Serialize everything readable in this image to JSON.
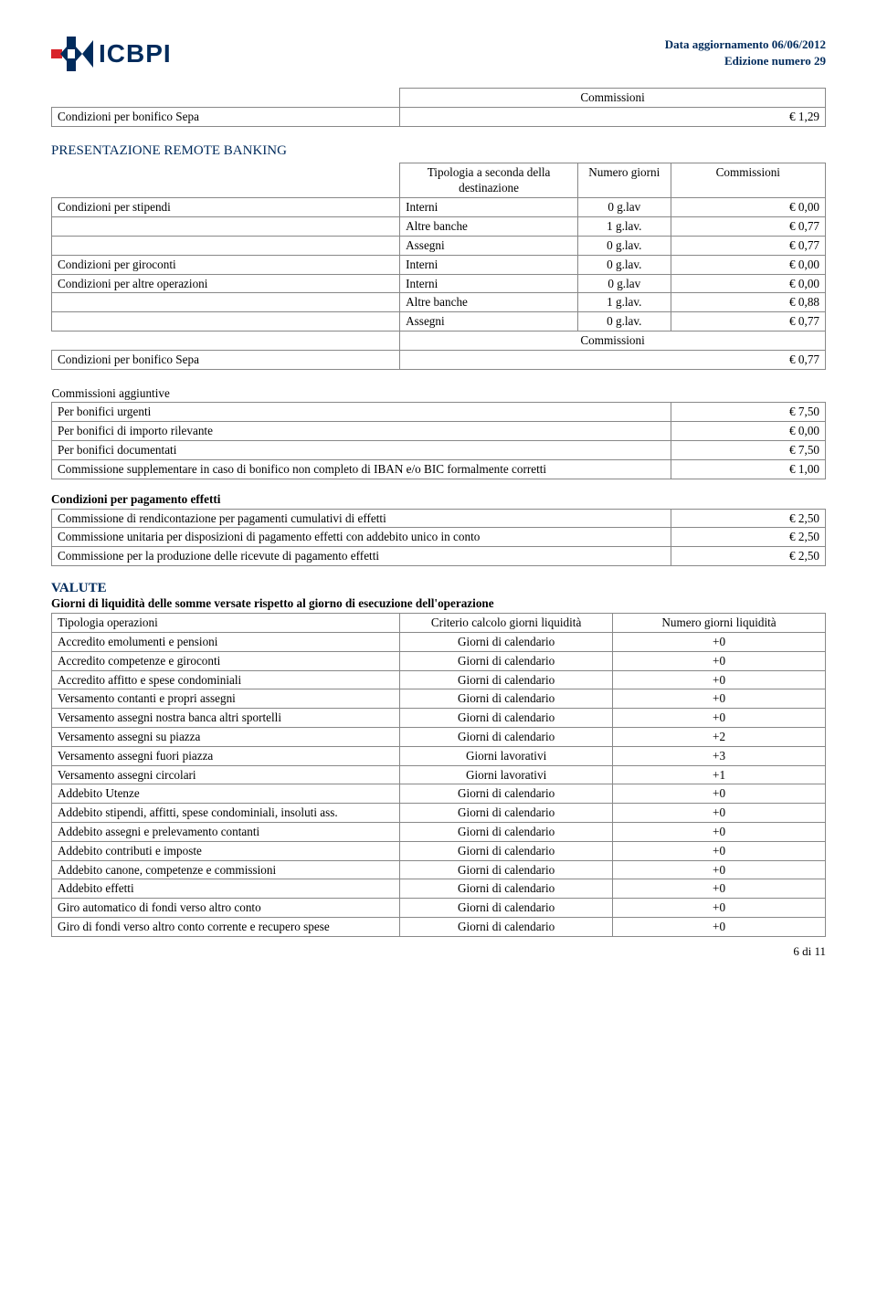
{
  "header": {
    "brand": "ICBPI",
    "date_line": "Data aggiornamento 06/06/2012",
    "edition_line": "Edizione numero 29",
    "logo_colors": {
      "blue": "#002b5c",
      "red": "#d8232a"
    }
  },
  "t_sepa1": {
    "r0c0": "Condizioni per bonifico Sepa",
    "r0c1_hdr": "Commissioni",
    "r0c2": "€ 1,29"
  },
  "section_remote": "PRESENTAZIONE REMOTE BANKING",
  "t_remote": {
    "hdr_c1": "Tipologia a seconda della destinazione",
    "hdr_c2": "Numero giorni",
    "hdr_c3": "Commissioni",
    "r1c0": "Condizioni  per stipendi",
    "r1c1": "Interni",
    "r1c2": "0 g.lav",
    "r1c3": "€ 0,00",
    "r2c1": "Altre banche",
    "r2c2": "1 g.lav.",
    "r2c3": "€ 0,77",
    "r3c1": "Assegni",
    "r3c2": "0 g.lav.",
    "r3c3": "€ 0,77",
    "r4c0": "Condizioni per giroconti",
    "r4c1": "Interni",
    "r4c2": "0 g.lav.",
    "r4c3": "€ 0,00",
    "r5c0": "Condizioni per altre operazioni",
    "r5c1": "Interni",
    "r5c2": "0 g.lav",
    "r5c3": "€ 0,00",
    "r6c1": "Altre banche",
    "r6c2": "1 g.lav.",
    "r6c3": "€ 0,88",
    "r7c1": "Assegni",
    "r7c2": "0 g.lav.",
    "r7c3": "€ 0,77",
    "r8c1_hdr": "Commissioni",
    "r9c0": "Condizioni per bonifico Sepa",
    "r9c3": "€ 0,77"
  },
  "t_agg": {
    "title": "Commissioni aggiuntive",
    "r1c0": "Per bonifici urgenti",
    "r1c1": "€ 7,50",
    "r2c0": "Per bonifici di importo rilevante",
    "r2c1": "€ 0,00",
    "r3c0": "Per bonifici documentati",
    "r3c1": "€ 7,50",
    "r4c0": "Commissione supplementare in caso di bonifico non completo di IBAN e/o BIC formalmente corretti",
    "r4c1": "€ 1,00"
  },
  "t_pag": {
    "title": "Condizioni per pagamento effetti",
    "r1c0": "Commissione di rendicontazione per pagamenti cumulativi di effetti",
    "r1c1": "€ 2,50",
    "r2c0": "Commissione unitaria per disposizioni di pagamento effetti con addebito unico in conto",
    "r2c1": "€ 2,50",
    "r3c0": "Commissione per la produzione delle ricevute di pagamento effetti",
    "r3c1": "€ 2,50"
  },
  "valute": {
    "heading": "VALUTE",
    "subheading": "Giorni di liquidità delle somme versate rispetto al giorno di esecuzione dell'operazione",
    "hdr_c0": "Tipologia operazioni",
    "hdr_c1": "Criterio calcolo giorni liquidità",
    "hdr_c2": "Numero giorni liquidità",
    "rows": [
      {
        "c0": "Accredito emolumenti e pensioni",
        "c1": "Giorni di calendario",
        "c2": "+0"
      },
      {
        "c0": "Accredito competenze e giroconti",
        "c1": "Giorni di calendario",
        "c2": "+0"
      },
      {
        "c0": "Accredito affitto e spese condominiali",
        "c1": "Giorni di calendario",
        "c2": "+0"
      },
      {
        "c0": "Versamento contanti e propri assegni",
        "c1": "Giorni di calendario",
        "c2": "+0"
      },
      {
        "c0": "Versamento assegni nostra banca altri sportelli",
        "c1": "Giorni di calendario",
        "c2": "+0"
      },
      {
        "c0": "Versamento assegni su piazza",
        "c1": "Giorni di calendario",
        "c2": "+2"
      },
      {
        "c0": "Versamento assegni fuori piazza",
        "c1": "Giorni lavorativi",
        "c2": "+3"
      },
      {
        "c0": "Versamento assegni circolari",
        "c1": "Giorni lavorativi",
        "c2": "+1"
      },
      {
        "c0": "Addebito Utenze",
        "c1": "Giorni di calendario",
        "c2": "+0"
      },
      {
        "c0": "Addebito stipendi, affitti, spese condominiali, insoluti ass.",
        "c1": "Giorni di calendario",
        "c2": "+0"
      },
      {
        "c0": "Addebito assegni e prelevamento contanti",
        "c1": "Giorni di calendario",
        "c2": "+0"
      },
      {
        "c0": "Addebito contributi e imposte",
        "c1": "Giorni di calendario",
        "c2": "+0"
      },
      {
        "c0": "Addebito canone, competenze e commissioni",
        "c1": "Giorni di calendario",
        "c2": "+0"
      },
      {
        "c0": "Addebito effetti",
        "c1": "Giorni di calendario",
        "c2": "+0"
      },
      {
        "c0": "Giro automatico di fondi verso altro conto",
        "c1": "Giorni di calendario",
        "c2": "+0"
      },
      {
        "c0": "Giro di fondi verso altro conto corrente e recupero spese",
        "c1": "Giorni di calendario",
        "c2": "+0"
      }
    ]
  },
  "footer": {
    "page": "6 di 11"
  }
}
